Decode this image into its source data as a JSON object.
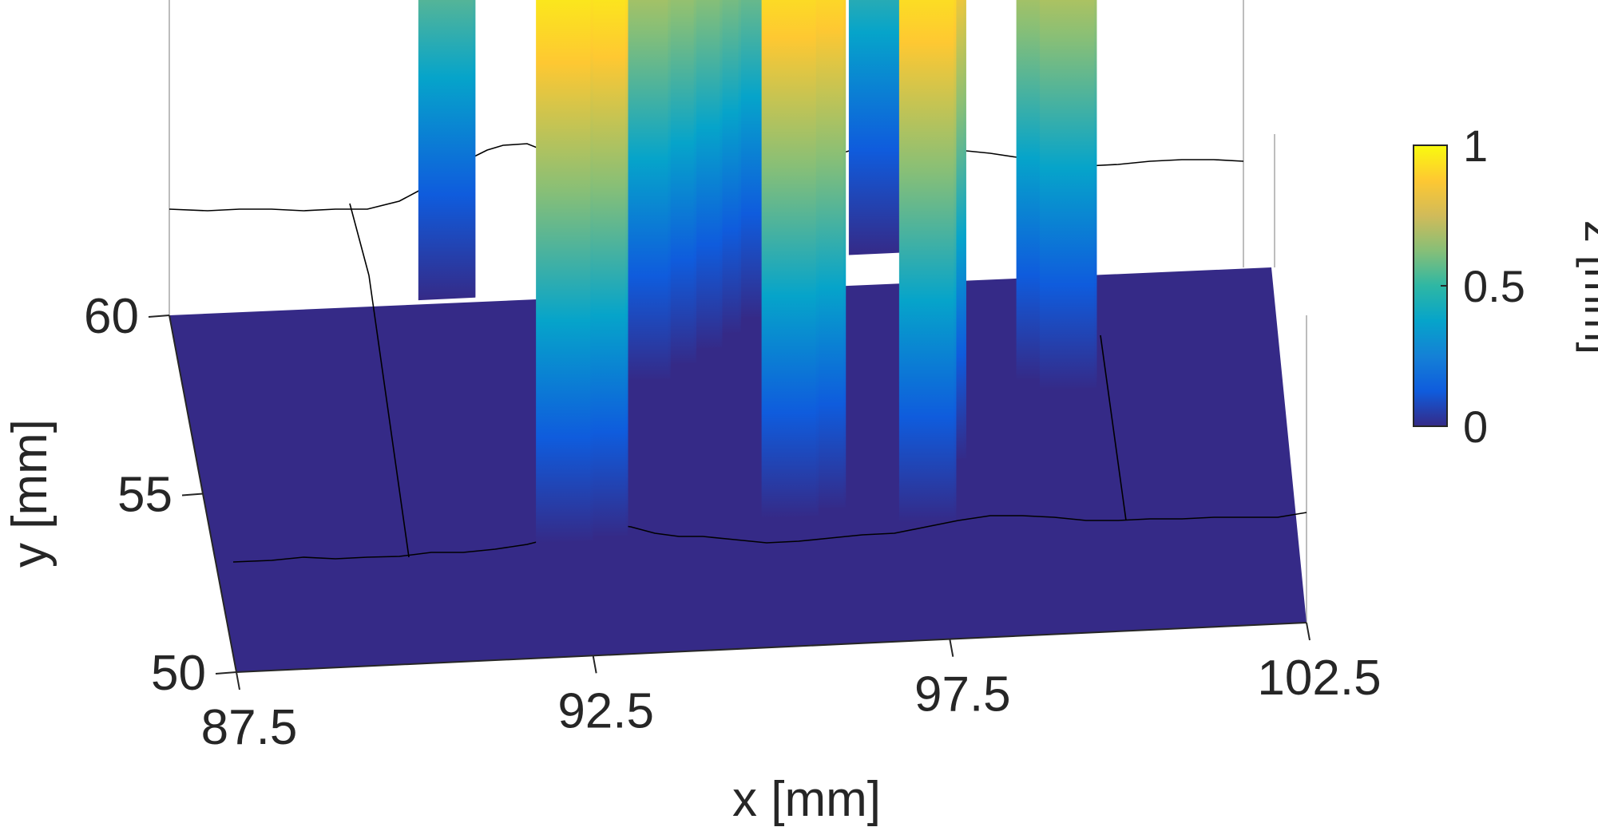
{
  "chart_data": {
    "type": "surface3d",
    "xlabel": "x [mm]",
    "ylabel": "y [mm]",
    "colorbar_label": "z [mm]",
    "xlim": [
      87.5,
      102.5
    ],
    "ylim": [
      50,
      60
    ],
    "zlim": [
      0,
      1
    ],
    "x_ticks": [
      87.5,
      92.5,
      97.5,
      102.5
    ],
    "x_tick_labels": [
      "87.5",
      "92.5",
      "97.5",
      "102.5"
    ],
    "y_ticks": [
      50,
      55,
      60
    ],
    "y_tick_labels": [
      "50",
      "55",
      "60"
    ],
    "colorbar_ticks": [
      0,
      0.5,
      1
    ],
    "colorbar_tick_labels": [
      "0",
      "0.5",
      "1"
    ],
    "colormap": [
      "#352a87",
      "#0f5cdd",
      "#1481d6",
      "#06a4ca",
      "#2eb7a4",
      "#87bf77",
      "#d1bb59",
      "#fec832",
      "#f9fb0e"
    ],
    "background_color": "#352a87",
    "profile_line_color": "#000000",
    "grid": false,
    "pillars": [
      {
        "x": 91.4,
        "y": 60.3,
        "z": 1.0
      },
      {
        "x": 92.4,
        "y": 53.4,
        "z": 1.0
      },
      {
        "x": 92.9,
        "y": 53.5,
        "z": 1.0
      },
      {
        "x": 93.9,
        "y": 57.8,
        "z": 1.0
      },
      {
        "x": 94.3,
        "y": 58.2,
        "z": 1.0
      },
      {
        "x": 94.7,
        "y": 58.6,
        "z": 1.0
      },
      {
        "x": 95.0,
        "y": 59.0,
        "z": 1.0
      },
      {
        "x": 95.4,
        "y": 59.4,
        "z": 1.0
      },
      {
        "x": 95.8,
        "y": 59.8,
        "z": 1.0
      },
      {
        "x": 96.0,
        "y": 60.1,
        "z": 1.0
      },
      {
        "x": 95.6,
        "y": 53.8,
        "z": 1.0
      },
      {
        "x": 96.0,
        "y": 54.0,
        "z": 1.0
      },
      {
        "x": 97.5,
        "y": 61.0,
        "z": 1.0
      },
      {
        "x": 97.8,
        "y": 55.2,
        "z": 1.0
      },
      {
        "x": 97.5,
        "y": 53.5,
        "z": 1.0
      },
      {
        "x": 99.5,
        "y": 57.3,
        "z": 1.0
      },
      {
        "x": 99.8,
        "y": 57.0,
        "z": 1.0
      }
    ]
  }
}
